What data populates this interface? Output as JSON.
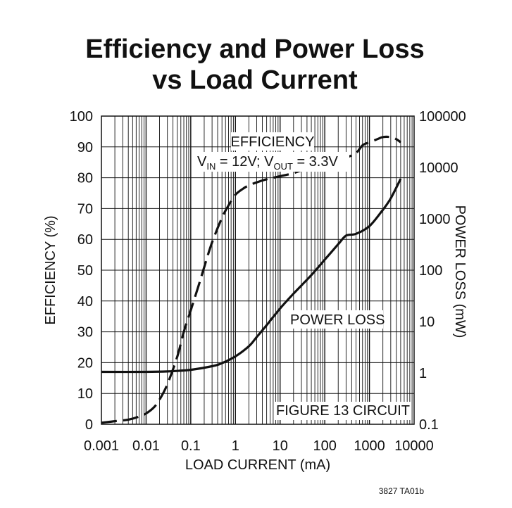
{
  "chart_data": {
    "type": "line",
    "title_lines": [
      "Efficiency and Power Loss",
      "vs Load Current"
    ],
    "xlabel": "LOAD CURRENT (mA)",
    "ylabel_left": "EFFICIENCY (%)",
    "ylabel_right": "POWER LOSS (mW)",
    "x_scale": "log",
    "xlim": [
      0.001,
      10000
    ],
    "ylim_left": [
      0,
      100
    ],
    "ylim_right": [
      0.1,
      100000
    ],
    "grid": true,
    "x_ticks": [
      "0.001",
      "0.01",
      "0.1",
      "1",
      "10",
      "100",
      "1000",
      "10000"
    ],
    "y_left_ticks": [
      "0",
      "10",
      "20",
      "30",
      "40",
      "50",
      "60",
      "70",
      "80",
      "90",
      "100"
    ],
    "y_right_ticks": [
      "0.1",
      "1",
      "10",
      "100",
      "1000",
      "10000",
      "100000"
    ],
    "series": [
      {
        "name": "EFFICIENCY",
        "axis": "left",
        "style": "dashed",
        "x": [
          0.001,
          0.002,
          0.004,
          0.007,
          0.01,
          0.015,
          0.02,
          0.03,
          0.05,
          0.07,
          0.1,
          0.15,
          0.2,
          0.3,
          0.5,
          0.7,
          1,
          1.5,
          2,
          3,
          5,
          10,
          20,
          50,
          100,
          200,
          300,
          500,
          700,
          1000,
          1500,
          2000,
          3000,
          4000,
          5000
        ],
        "values": [
          0.5,
          1,
          1.5,
          2.5,
          3.5,
          5.5,
          8,
          13,
          22,
          30,
          37,
          45,
          51,
          59,
          67,
          71,
          74.5,
          76.5,
          77.5,
          78.5,
          79.5,
          80.5,
          81.5,
          83.5,
          84.5,
          85.5,
          86.5,
          88,
          90.5,
          91.5,
          92.5,
          93.2,
          93.2,
          92.5,
          91.5
        ]
      },
      {
        "name": "POWER LOSS",
        "axis": "right",
        "style": "solid",
        "x": [
          0.001,
          0.01,
          0.03,
          0.1,
          0.3,
          0.5,
          1,
          2,
          3,
          5,
          10,
          20,
          50,
          100,
          200,
          300,
          500,
          1000,
          2000,
          3000,
          5000
        ],
        "values": [
          1.05,
          1.05,
          1.07,
          1.15,
          1.35,
          1.55,
          2.1,
          3.3,
          5,
          8.5,
          18,
          35,
          80,
          160,
          320,
          470,
          510,
          720,
          1500,
          2500,
          6000
        ]
      }
    ],
    "annotations": {
      "efficiency_label": "EFFICIENCY",
      "conditions_v_in": "V",
      "conditions_in_sub": "IN",
      "conditions_mid": " = 12V; V",
      "conditions_out_sub": "OUT",
      "conditions_end": " = 3.3V",
      "power_loss_label": "POWER LOSS",
      "circuit_label": "FIGURE 13 CIRCUIT"
    },
    "figure_code": "3827 TA01b"
  }
}
